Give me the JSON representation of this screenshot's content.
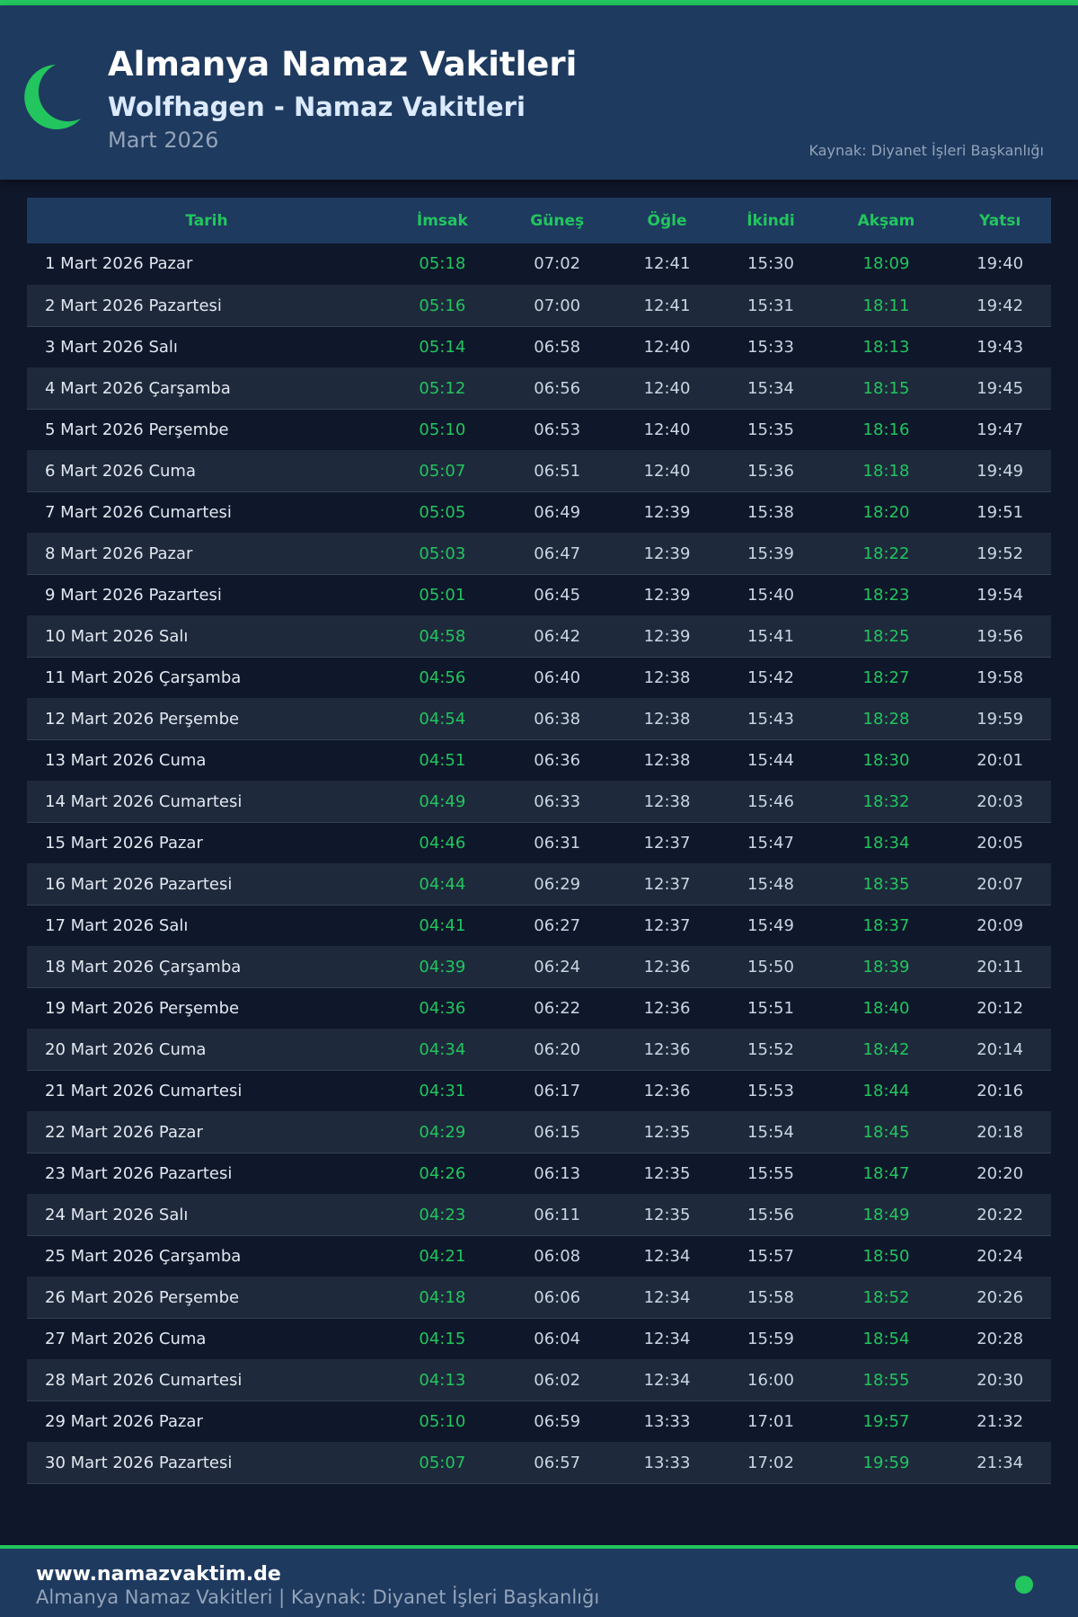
{
  "header": {
    "title": "Almanya Namaz Vakitleri",
    "subtitle": "Wolfhagen - Namaz Vakitleri",
    "month": "Mart 2026",
    "source": "Kaynak: Diyanet İşleri Başkanlığı",
    "icon": "crescent-moon-icon"
  },
  "colors": {
    "accent": "#22c55e",
    "header_bg": "#1e3a5f",
    "page_bg": "#0f172a",
    "alt_row": "#1e293b"
  },
  "table": {
    "columns": [
      "Tarih",
      "İmsak",
      "Güneş",
      "Öğle",
      "İkindi",
      "Akşam",
      "Yatsı"
    ],
    "rows": [
      [
        "1 Mart 2026 Pazar",
        "05:18",
        "07:02",
        "12:41",
        "15:30",
        "18:09",
        "19:40"
      ],
      [
        "2 Mart 2026 Pazartesi",
        "05:16",
        "07:00",
        "12:41",
        "15:31",
        "18:11",
        "19:42"
      ],
      [
        "3 Mart 2026 Salı",
        "05:14",
        "06:58",
        "12:40",
        "15:33",
        "18:13",
        "19:43"
      ],
      [
        "4 Mart 2026 Çarşamba",
        "05:12",
        "06:56",
        "12:40",
        "15:34",
        "18:15",
        "19:45"
      ],
      [
        "5 Mart 2026 Perşembe",
        "05:10",
        "06:53",
        "12:40",
        "15:35",
        "18:16",
        "19:47"
      ],
      [
        "6 Mart 2026 Cuma",
        "05:07",
        "06:51",
        "12:40",
        "15:36",
        "18:18",
        "19:49"
      ],
      [
        "7 Mart 2026 Cumartesi",
        "05:05",
        "06:49",
        "12:39",
        "15:38",
        "18:20",
        "19:51"
      ],
      [
        "8 Mart 2026 Pazar",
        "05:03",
        "06:47",
        "12:39",
        "15:39",
        "18:22",
        "19:52"
      ],
      [
        "9 Mart 2026 Pazartesi",
        "05:01",
        "06:45",
        "12:39",
        "15:40",
        "18:23",
        "19:54"
      ],
      [
        "10 Mart 2026 Salı",
        "04:58",
        "06:42",
        "12:39",
        "15:41",
        "18:25",
        "19:56"
      ],
      [
        "11 Mart 2026 Çarşamba",
        "04:56",
        "06:40",
        "12:38",
        "15:42",
        "18:27",
        "19:58"
      ],
      [
        "12 Mart 2026 Perşembe",
        "04:54",
        "06:38",
        "12:38",
        "15:43",
        "18:28",
        "19:59"
      ],
      [
        "13 Mart 2026 Cuma",
        "04:51",
        "06:36",
        "12:38",
        "15:44",
        "18:30",
        "20:01"
      ],
      [
        "14 Mart 2026 Cumartesi",
        "04:49",
        "06:33",
        "12:38",
        "15:46",
        "18:32",
        "20:03"
      ],
      [
        "15 Mart 2026 Pazar",
        "04:46",
        "06:31",
        "12:37",
        "15:47",
        "18:34",
        "20:05"
      ],
      [
        "16 Mart 2026 Pazartesi",
        "04:44",
        "06:29",
        "12:37",
        "15:48",
        "18:35",
        "20:07"
      ],
      [
        "17 Mart 2026 Salı",
        "04:41",
        "06:27",
        "12:37",
        "15:49",
        "18:37",
        "20:09"
      ],
      [
        "18 Mart 2026 Çarşamba",
        "04:39",
        "06:24",
        "12:36",
        "15:50",
        "18:39",
        "20:11"
      ],
      [
        "19 Mart 2026 Perşembe",
        "04:36",
        "06:22",
        "12:36",
        "15:51",
        "18:40",
        "20:12"
      ],
      [
        "20 Mart 2026 Cuma",
        "04:34",
        "06:20",
        "12:36",
        "15:52",
        "18:42",
        "20:14"
      ],
      [
        "21 Mart 2026 Cumartesi",
        "04:31",
        "06:17",
        "12:36",
        "15:53",
        "18:44",
        "20:16"
      ],
      [
        "22 Mart 2026 Pazar",
        "04:29",
        "06:15",
        "12:35",
        "15:54",
        "18:45",
        "20:18"
      ],
      [
        "23 Mart 2026 Pazartesi",
        "04:26",
        "06:13",
        "12:35",
        "15:55",
        "18:47",
        "20:20"
      ],
      [
        "24 Mart 2026 Salı",
        "04:23",
        "06:11",
        "12:35",
        "15:56",
        "18:49",
        "20:22"
      ],
      [
        "25 Mart 2026 Çarşamba",
        "04:21",
        "06:08",
        "12:34",
        "15:57",
        "18:50",
        "20:24"
      ],
      [
        "26 Mart 2026 Perşembe",
        "04:18",
        "06:06",
        "12:34",
        "15:58",
        "18:52",
        "20:26"
      ],
      [
        "27 Mart 2026 Cuma",
        "04:15",
        "06:04",
        "12:34",
        "15:59",
        "18:54",
        "20:28"
      ],
      [
        "28 Mart 2026 Cumartesi",
        "04:13",
        "06:02",
        "12:34",
        "16:00",
        "18:55",
        "20:30"
      ],
      [
        "29 Mart 2026 Pazar",
        "05:10",
        "06:59",
        "13:33",
        "17:01",
        "19:57",
        "21:32"
      ],
      [
        "30 Mart 2026 Pazartesi",
        "05:07",
        "06:57",
        "13:33",
        "17:02",
        "19:59",
        "21:34"
      ]
    ]
  },
  "footer": {
    "site": "www.namazvaktim.de",
    "note": "Almanya Namaz Vakitleri | Kaynak: Diyanet İşleri Başkanlığı",
    "icon": "status-dot-icon"
  }
}
